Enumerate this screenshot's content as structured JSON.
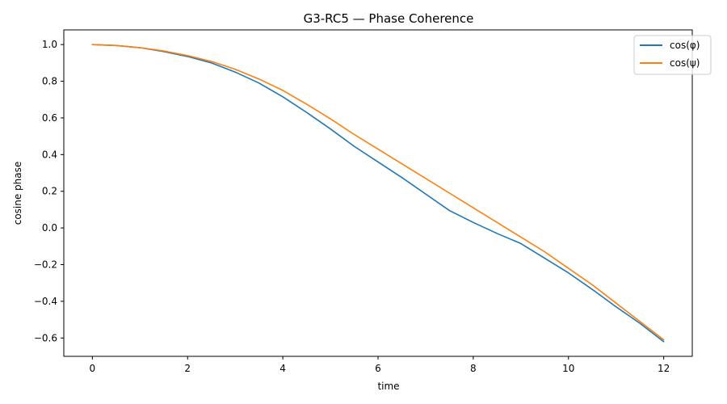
{
  "chart_data": {
    "type": "line",
    "title": "G3-RC5 — Phase Coherence",
    "xlabel": "time",
    "ylabel": "cosine phase",
    "xlim": [
      -0.6,
      12.6
    ],
    "ylim": [
      -0.7,
      1.08
    ],
    "xticks": [
      0,
      2,
      4,
      6,
      8,
      10,
      12
    ],
    "yticks": [
      -0.6,
      -0.4,
      -0.2,
      0.0,
      0.2,
      0.4,
      0.6,
      0.8,
      1.0
    ],
    "xtick_labels": [
      "0",
      "2",
      "4",
      "6",
      "8",
      "10",
      "12"
    ],
    "ytick_labels": [
      "−0.6",
      "−0.4",
      "−0.2",
      "0.0",
      "0.2",
      "0.4",
      "0.6",
      "0.8",
      "1.0"
    ],
    "legend_position": "top-right",
    "grid": false,
    "series": [
      {
        "name": "cos(φ)",
        "color": "#1f77b4",
        "x": [
          0,
          0.5,
          1,
          1.5,
          2,
          2.5,
          3,
          3.5,
          4,
          4.5,
          5,
          5.5,
          6,
          6.5,
          7,
          7.5,
          8,
          8.5,
          9,
          9.5,
          10,
          10.5,
          11,
          11.5,
          12
        ],
        "values": [
          1.0,
          0.995,
          0.983,
          0.962,
          0.935,
          0.9,
          0.85,
          0.79,
          0.715,
          0.63,
          0.54,
          0.445,
          0.36,
          0.275,
          0.185,
          0.095,
          0.03,
          -0.03,
          -0.085,
          -0.165,
          -0.245,
          -0.335,
          -0.43,
          -0.52,
          -0.62
        ]
      },
      {
        "name": "cos(ψ)",
        "color": "#ff7f0e",
        "x": [
          0,
          0.5,
          1,
          1.5,
          2,
          2.5,
          3,
          3.5,
          4,
          4.5,
          5,
          5.5,
          6,
          6.5,
          7,
          7.5,
          8,
          8.5,
          9,
          9.5,
          10,
          10.5,
          11,
          11.5,
          12
        ],
        "values": [
          1.0,
          0.995,
          0.983,
          0.965,
          0.94,
          0.908,
          0.865,
          0.812,
          0.75,
          0.675,
          0.595,
          0.51,
          0.43,
          0.35,
          0.27,
          0.19,
          0.11,
          0.03,
          -0.05,
          -0.13,
          -0.22,
          -0.31,
          -0.41,
          -0.51,
          -0.61
        ]
      }
    ]
  }
}
